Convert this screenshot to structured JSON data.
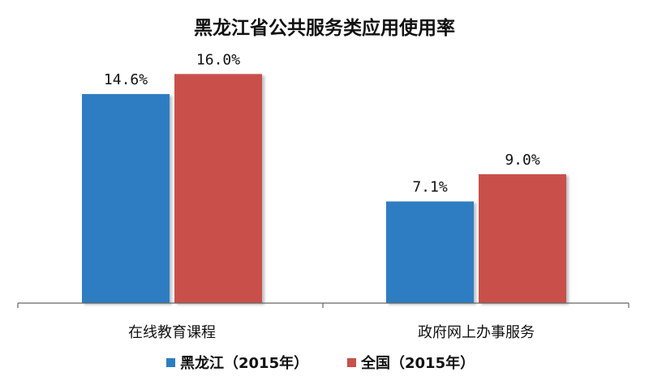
{
  "chart_data": {
    "type": "bar",
    "title": "黑龙江省公共服务类应用使用率",
    "categories": [
      "在线教育课程",
      "政府网上办事服务"
    ],
    "series": [
      {
        "name": "黑龙江（2015年）",
        "values": [
          14.6,
          7.1
        ],
        "labels": [
          "14.6%",
          "7.1%"
        ],
        "color": "#2e7dc2"
      },
      {
        "name": "全国（2015年）",
        "values": [
          16.0,
          9.0
        ],
        "labels": [
          "16.0%",
          "9.0%"
        ],
        "color": "#c9504b"
      }
    ],
    "ylim": [
      0,
      18
    ],
    "grid": false,
    "legend": "bottom",
    "xlabel": "",
    "ylabel": ""
  }
}
